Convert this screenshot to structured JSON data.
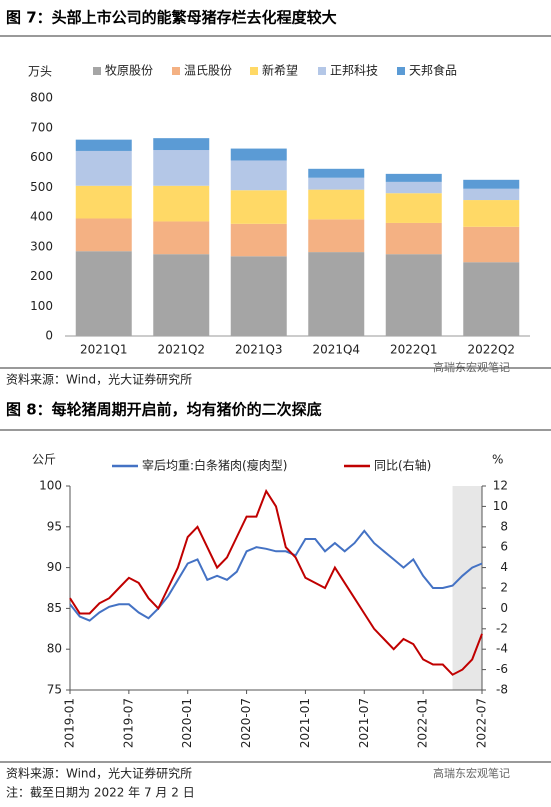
{
  "watermark": "高瑞东宏观笔记",
  "chart_data": [
    {
      "type": "stacked-bar",
      "title": "图 7：头部上市公司的能繁母猪存栏去化程度较大",
      "source": "资料来源：Wind，光大证券研究所",
      "ylabel": "万头",
      "categories": [
        "2021Q1",
        "2021Q2",
        "2021Q3",
        "2021Q4",
        "2022Q1",
        "2022Q2"
      ],
      "series": [
        {
          "name": "牧原股份",
          "color": "#a5a5a5",
          "values": [
            285,
            275,
            268,
            282,
            275,
            248
          ]
        },
        {
          "name": "温氏股份",
          "color": "#f4b183",
          "values": [
            110,
            110,
            109,
            110,
            105,
            119
          ]
        },
        {
          "name": "新希望",
          "color": "#ffd966",
          "values": [
            110,
            120,
            113,
            100,
            100,
            90
          ]
        },
        {
          "name": "正邦科技",
          "color": "#b4c7e7",
          "values": [
            117,
            120,
            100,
            40,
            38,
            38
          ]
        },
        {
          "name": "天邦食品",
          "color": "#5b9bd5",
          "values": [
            38,
            40,
            40,
            30,
            27,
            30
          ]
        }
      ],
      "ylim": [
        0,
        800
      ],
      "yticks": [
        0,
        100,
        200,
        300,
        400,
        500,
        600,
        700,
        800
      ],
      "grid": false
    },
    {
      "type": "line",
      "title": "图 8：每轮猪周期开启前，均有猪价的二次探底",
      "source": "资料来源：Wind，光大证券研究所",
      "note": "注：截至日期为 2022 年 7 月 2 日",
      "ylabel": "公斤",
      "y2label": "%",
      "x": [
        "2019-01",
        null,
        null,
        null,
        null,
        null,
        "2019-07",
        null,
        null,
        null,
        null,
        null,
        "2020-01",
        null,
        null,
        null,
        null,
        null,
        "2020-07",
        null,
        null,
        null,
        null,
        null,
        "2021-01",
        null,
        null,
        null,
        null,
        null,
        "2021-07",
        null,
        null,
        null,
        null,
        null,
        "2022-01",
        null,
        null,
        null,
        null,
        null,
        "2022-07"
      ],
      "series": [
        {
          "name": "宰后均重:白条猪肉(瘦肉型)",
          "color": "#4472c4",
          "axis": "y",
          "values": [
            85.5,
            84,
            83.5,
            84.5,
            85.2,
            85.5,
            85.5,
            84.5,
            83.8,
            85,
            86.5,
            88.5,
            90.5,
            91,
            88.5,
            89,
            88.5,
            89.5,
            92,
            92.5,
            92.3,
            92,
            92,
            91.5,
            93.5,
            93.5,
            92,
            93,
            92,
            93,
            94.5,
            93,
            92,
            91,
            90,
            91,
            89,
            87.5,
            87.5,
            87.8,
            89,
            90,
            90.5
          ]
        },
        {
          "name": "同比(右轴)",
          "color": "#c00000",
          "axis": "y2",
          "values": [
            1,
            -0.5,
            -0.5,
            0.5,
            1,
            2,
            3,
            2.5,
            1,
            0,
            2,
            4,
            7,
            8,
            6,
            4,
            5,
            7,
            9,
            9,
            11.5,
            10,
            6,
            5,
            3,
            2.5,
            2,
            4,
            2.5,
            1,
            -0.5,
            -2,
            -3,
            -4,
            -3,
            -3.5,
            -5,
            -5.5,
            -5.5,
            -6.5,
            -6,
            -5,
            -2.5
          ]
        }
      ],
      "ylim": [
        75,
        100
      ],
      "yticks": [
        75,
        80,
        85,
        90,
        95,
        100
      ],
      "y2lim": [
        -8,
        12
      ],
      "y2ticks": [
        -8,
        -6,
        -4,
        -2,
        0,
        2,
        4,
        6,
        8,
        10,
        12
      ]
    }
  ]
}
